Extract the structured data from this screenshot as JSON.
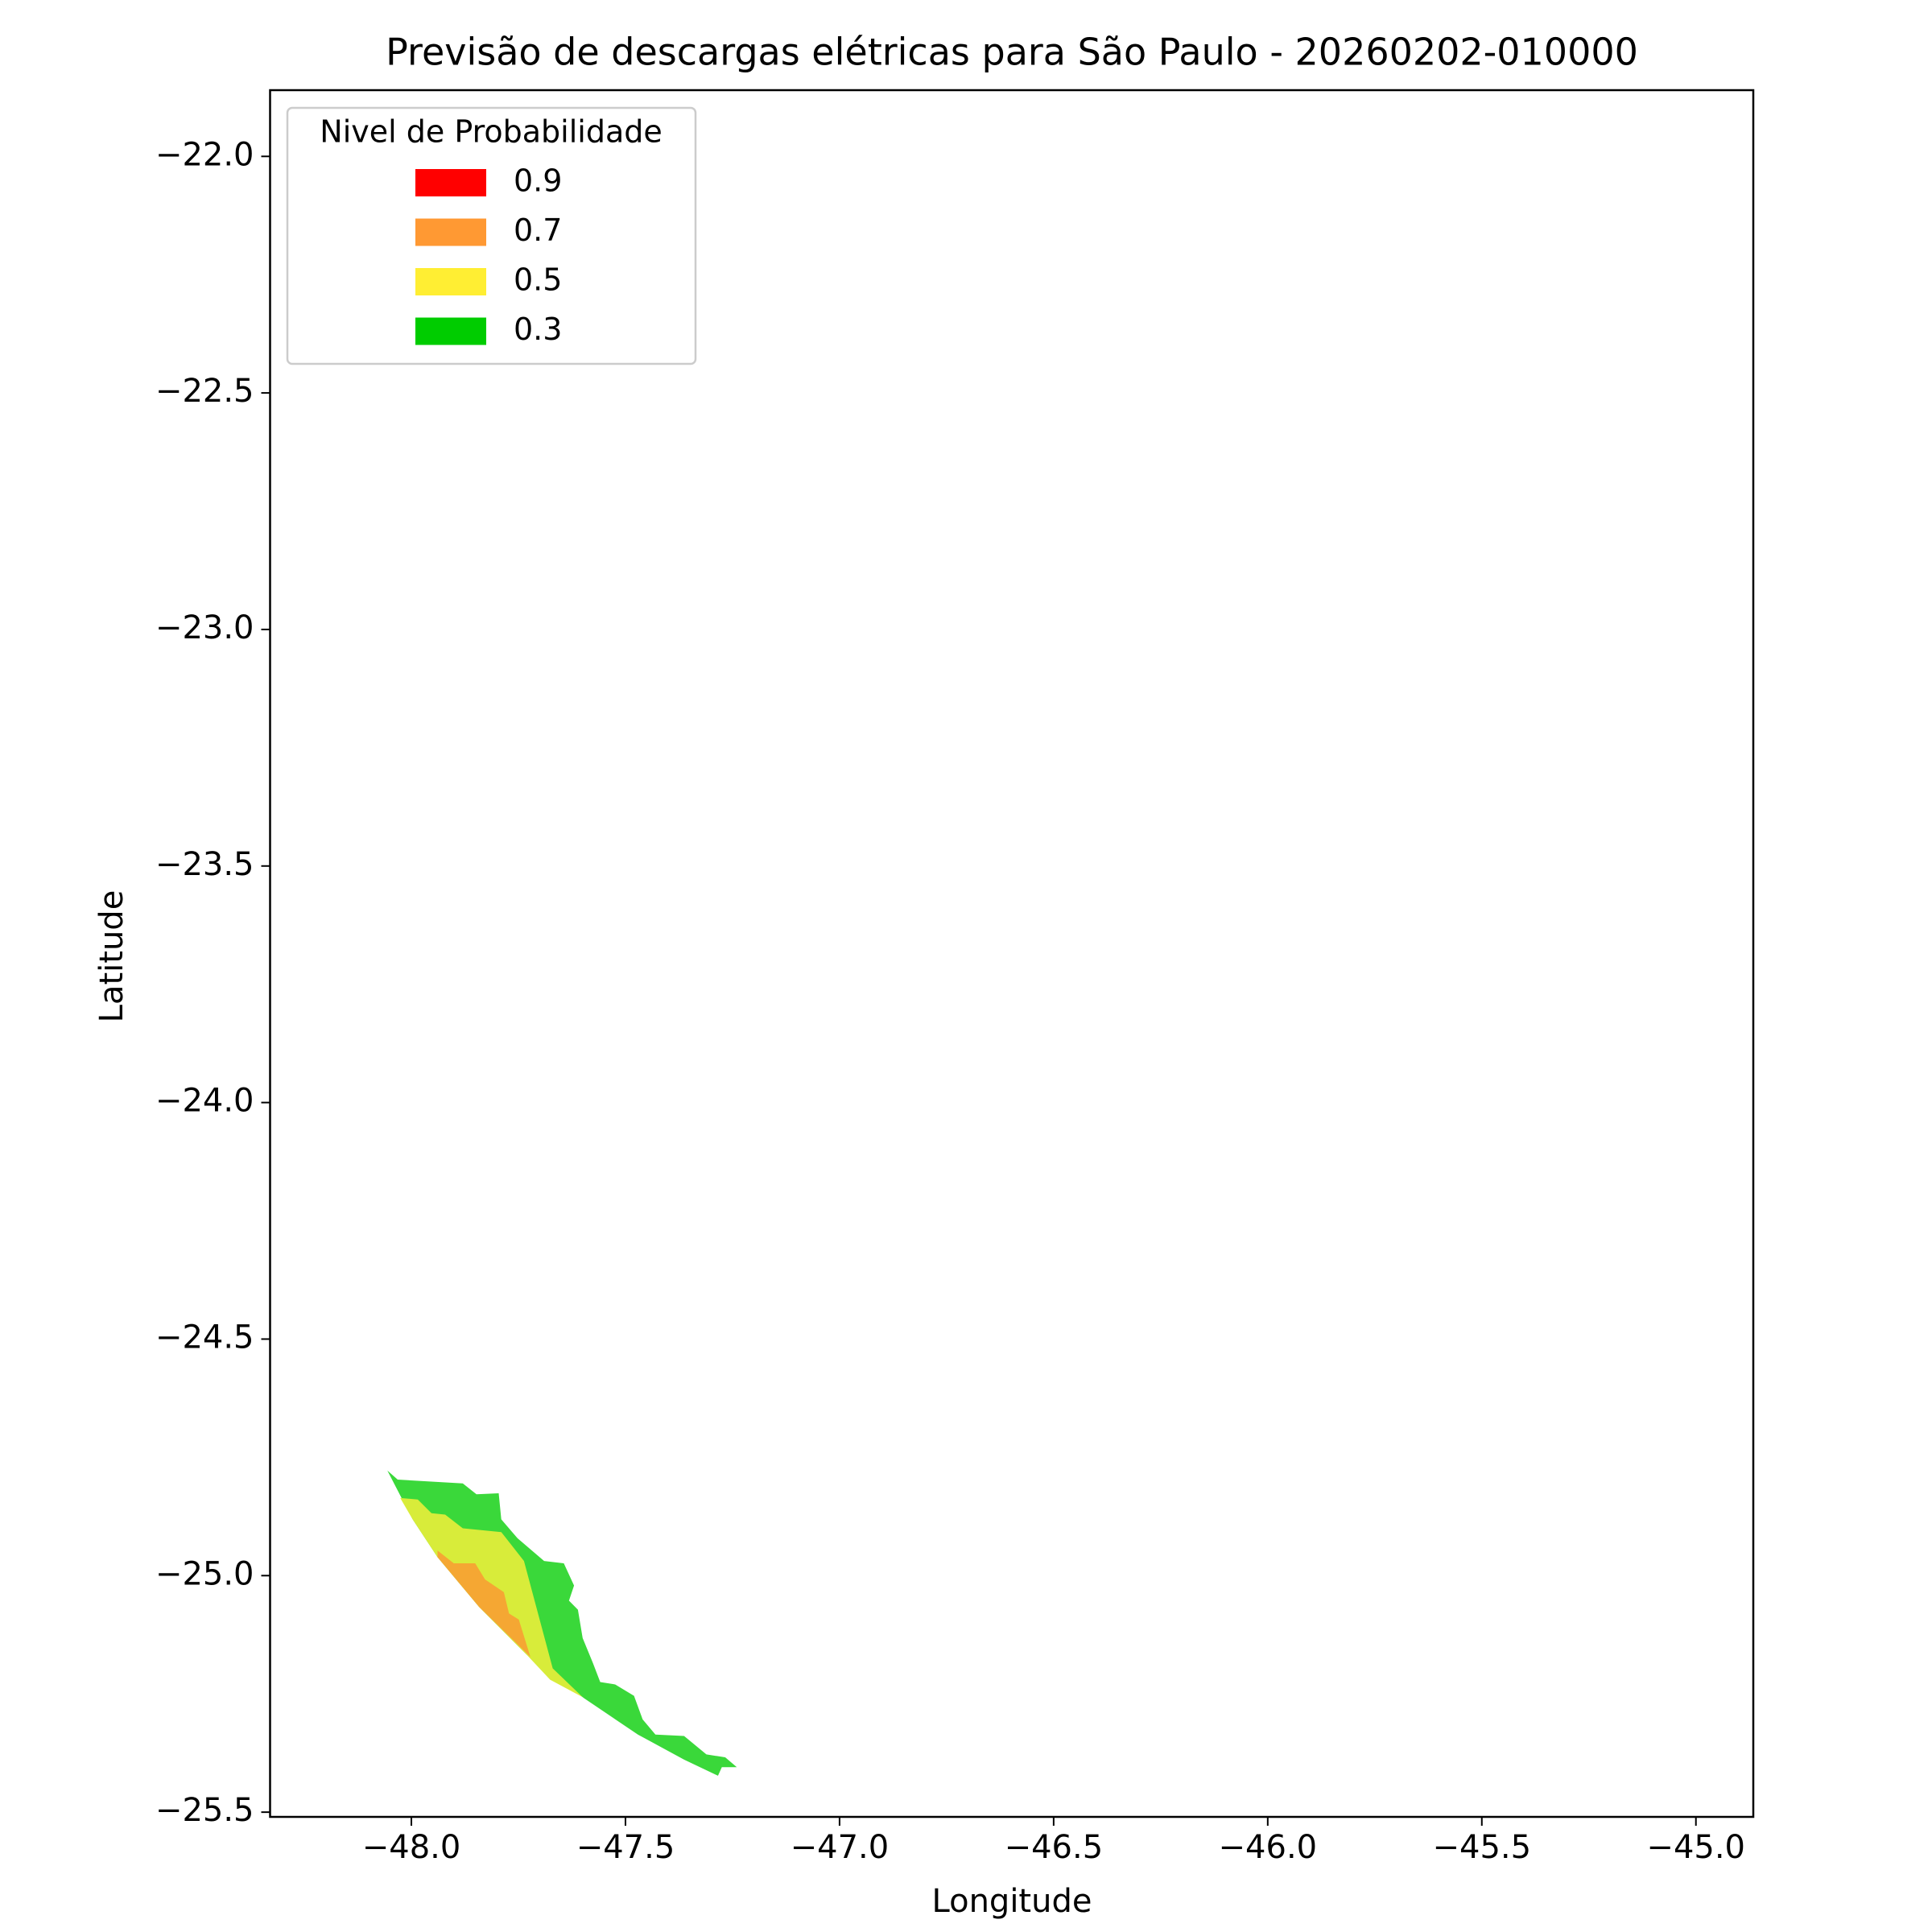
{
  "chart_data": {
    "type": "contour",
    "title": "Previsão de descargas elétricas para São Paulo - 20260202-010000",
    "x_label": "Longitude",
    "y_label": "Latitude",
    "xlim": [
      -48.33,
      -44.866
    ],
    "ylim": [
      -25.51,
      -21.86
    ],
    "xticks": [
      {
        "value": -48.0,
        "label": "−48.0"
      },
      {
        "value": -47.5,
        "label": "−47.5"
      },
      {
        "value": -47.0,
        "label": "−47.0"
      },
      {
        "value": -46.5,
        "label": "−46.5"
      },
      {
        "value": -46.0,
        "label": "−46.0"
      },
      {
        "value": -45.5,
        "label": "−45.5"
      },
      {
        "value": -45.0,
        "label": "−45.0"
      }
    ],
    "yticks": [
      {
        "value": -22.0,
        "label": "−22.0"
      },
      {
        "value": -22.5,
        "label": "−22.5"
      },
      {
        "value": -23.0,
        "label": "−23.0"
      },
      {
        "value": -23.5,
        "label": "−23.5"
      },
      {
        "value": -24.0,
        "label": "−24.0"
      },
      {
        "value": -24.5,
        "label": "−24.5"
      },
      {
        "value": -25.0,
        "label": "−25.0"
      },
      {
        "value": -25.5,
        "label": "−25.5"
      }
    ],
    "legend": {
      "title": "Nivel de Probabilidade",
      "position": "upper left"
    },
    "series": [
      {
        "name": "0.9",
        "color": "#ff0000"
      },
      {
        "name": "0.7",
        "color": "#ff9933"
      },
      {
        "name": "0.5",
        "color": "#ffee33"
      },
      {
        "name": "0.3",
        "color": "#00cc00"
      }
    ],
    "contours": [
      {
        "color": "#3ad83a",
        "lon": [
          -48.056,
          -48.032,
          -47.88,
          -47.848,
          -47.796,
          -47.79,
          -47.752,
          -47.69,
          -47.644,
          -47.62,
          -47.632,
          -47.611,
          -47.6,
          -47.576,
          -47.559,
          -47.524,
          -47.48,
          -47.46,
          -47.43,
          -47.363,
          -47.311,
          -47.267,
          -47.24,
          -47.275,
          -47.284,
          -47.363,
          -47.471,
          -47.597,
          -47.731,
          -47.842,
          -47.939,
          -47.997
        ],
        "lat": [
          -24.778,
          -24.797,
          -24.805,
          -24.828,
          -24.826,
          -24.881,
          -24.921,
          -24.969,
          -24.974,
          -25.021,
          -25.053,
          -25.072,
          -25.132,
          -25.185,
          -25.225,
          -25.23,
          -25.254,
          -25.304,
          -25.336,
          -25.339,
          -25.378,
          -25.384,
          -25.405,
          -25.405,
          -25.423,
          -25.389,
          -25.336,
          -25.259,
          -25.167,
          -25.066,
          -24.961,
          -24.881
        ]
      },
      {
        "color": "#d8ec3a",
        "lon": [
          -48.026,
          -47.985,
          -47.953,
          -47.921,
          -47.88,
          -47.79,
          -47.737,
          -47.67,
          -47.6,
          -47.676,
          -47.731,
          -47.842,
          -47.939,
          -47.997
        ],
        "lat": [
          -24.836,
          -24.839,
          -24.868,
          -24.871,
          -24.9,
          -24.908,
          -24.969,
          -25.196,
          -25.257,
          -25.22,
          -25.167,
          -25.066,
          -24.961,
          -24.881
        ]
      },
      {
        "color": "#f5a733",
        "lon": [
          -47.939,
          -47.901,
          -47.851,
          -47.828,
          -47.784,
          -47.772,
          -47.749,
          -47.722,
          -47.842,
          -47.939
        ],
        "lat": [
          -24.947,
          -24.974,
          -24.974,
          -25.008,
          -25.035,
          -25.08,
          -25.093,
          -25.172,
          -25.066,
          -24.961
        ]
      }
    ]
  }
}
